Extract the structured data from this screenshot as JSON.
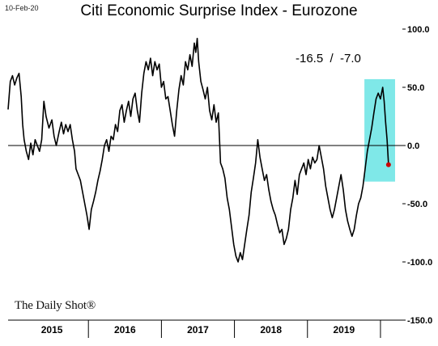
{
  "header": {
    "date": "10-Feb-20"
  },
  "annotation": "-16.5  /  -7.0",
  "source_logo": "The Daily Shot®",
  "colors": {
    "line": "#000000",
    "highlight": "#7fe8e8",
    "last_point": "#cc0000"
  },
  "chart_data": {
    "type": "line",
    "title": "Citi Economic Surprise Index - Eurozone",
    "ylim": [
      -150,
      100
    ],
    "yticks": [
      100,
      50,
      0,
      -50,
      -100,
      -150
    ],
    "ytick_labels": [
      "100.0",
      "50.0",
      "0.0",
      "-50.0",
      "-100.0",
      "-150.0"
    ],
    "xlim": [
      2014.9,
      2020.3
    ],
    "x_tick_labels": [
      "2015",
      "2016",
      "2017",
      "2018",
      "2019"
    ],
    "x_tick_positions": [
      2015.5,
      2016.5,
      2017.5,
      2018.5,
      2019.5
    ],
    "x_boundaries": [
      2016.0,
      2017.0,
      2018.0,
      2019.0,
      2020.0
    ],
    "highlight_range": {
      "x": [
        2019.78,
        2020.2
      ],
      "y": [
        -31,
        57
      ]
    },
    "last_value": {
      "x": 2020.11,
      "y": -16.5
    },
    "series": [
      {
        "values": [
          [
            2014.9,
            31
          ],
          [
            2014.93,
            55
          ],
          [
            2014.96,
            60
          ],
          [
            2014.99,
            52
          ],
          [
            2015.02,
            58
          ],
          [
            2015.05,
            62
          ],
          [
            2015.08,
            42
          ],
          [
            2015.1,
            18
          ],
          [
            2015.12,
            5
          ],
          [
            2015.15,
            -5
          ],
          [
            2015.18,
            -12
          ],
          [
            2015.21,
            2
          ],
          [
            2015.24,
            -8
          ],
          [
            2015.27,
            5
          ],
          [
            2015.3,
            0
          ],
          [
            2015.33,
            -5
          ],
          [
            2015.36,
            5
          ],
          [
            2015.39,
            38
          ],
          [
            2015.42,
            25
          ],
          [
            2015.46,
            15
          ],
          [
            2015.5,
            22
          ],
          [
            2015.53,
            8
          ],
          [
            2015.56,
            0
          ],
          [
            2015.6,
            12
          ],
          [
            2015.63,
            20
          ],
          [
            2015.66,
            10
          ],
          [
            2015.69,
            18
          ],
          [
            2015.72,
            12
          ],
          [
            2015.75,
            18
          ],
          [
            2015.78,
            5
          ],
          [
            2015.81,
            -5
          ],
          [
            2015.83,
            -20
          ],
          [
            2015.86,
            -25
          ],
          [
            2015.89,
            -30
          ],
          [
            2015.92,
            -40
          ],
          [
            2015.95,
            -50
          ],
          [
            2015.98,
            -60
          ],
          [
            2016.01,
            -72
          ],
          [
            2016.04,
            -55
          ],
          [
            2016.07,
            -48
          ],
          [
            2016.1,
            -40
          ],
          [
            2016.13,
            -30
          ],
          [
            2016.16,
            -22
          ],
          [
            2016.19,
            -12
          ],
          [
            2016.22,
            0
          ],
          [
            2016.25,
            5
          ],
          [
            2016.28,
            -5
          ],
          [
            2016.31,
            8
          ],
          [
            2016.34,
            5
          ],
          [
            2016.37,
            18
          ],
          [
            2016.4,
            12
          ],
          [
            2016.43,
            30
          ],
          [
            2016.46,
            35
          ],
          [
            2016.49,
            20
          ],
          [
            2016.52,
            30
          ],
          [
            2016.55,
            38
          ],
          [
            2016.58,
            25
          ],
          [
            2016.61,
            40
          ],
          [
            2016.64,
            45
          ],
          [
            2016.67,
            30
          ],
          [
            2016.7,
            20
          ],
          [
            2016.73,
            45
          ],
          [
            2016.76,
            62
          ],
          [
            2016.79,
            72
          ],
          [
            2016.82,
            65
          ],
          [
            2016.85,
            75
          ],
          [
            2016.88,
            60
          ],
          [
            2016.91,
            72
          ],
          [
            2016.94,
            65
          ],
          [
            2016.97,
            70
          ],
          [
            2017.0,
            50
          ],
          [
            2017.03,
            55
          ],
          [
            2017.06,
            40
          ],
          [
            2017.09,
            42
          ],
          [
            2017.12,
            30
          ],
          [
            2017.15,
            18
          ],
          [
            2017.18,
            8
          ],
          [
            2017.21,
            30
          ],
          [
            2017.24,
            48
          ],
          [
            2017.27,
            60
          ],
          [
            2017.3,
            52
          ],
          [
            2017.33,
            72
          ],
          [
            2017.36,
            65
          ],
          [
            2017.39,
            78
          ],
          [
            2017.42,
            68
          ],
          [
            2017.45,
            88
          ],
          [
            2017.47,
            80
          ],
          [
            2017.49,
            92
          ],
          [
            2017.51,
            72
          ],
          [
            2017.54,
            55
          ],
          [
            2017.57,
            48
          ],
          [
            2017.6,
            40
          ],
          [
            2017.63,
            50
          ],
          [
            2017.66,
            30
          ],
          [
            2017.69,
            22
          ],
          [
            2017.72,
            35
          ],
          [
            2017.75,
            20
          ],
          [
            2017.78,
            28
          ],
          [
            2017.81,
            -15
          ],
          [
            2017.84,
            -20
          ],
          [
            2017.87,
            -28
          ],
          [
            2017.9,
            -45
          ],
          [
            2017.93,
            -55
          ],
          [
            2017.96,
            -70
          ],
          [
            2017.99,
            -85
          ],
          [
            2018.02,
            -95
          ],
          [
            2018.05,
            -100
          ],
          [
            2018.08,
            -92
          ],
          [
            2018.11,
            -98
          ],
          [
            2018.14,
            -85
          ],
          [
            2018.17,
            -72
          ],
          [
            2018.2,
            -60
          ],
          [
            2018.23,
            -40
          ],
          [
            2018.26,
            -28
          ],
          [
            2018.29,
            -15
          ],
          [
            2018.32,
            5
          ],
          [
            2018.35,
            -10
          ],
          [
            2018.38,
            -20
          ],
          [
            2018.41,
            -30
          ],
          [
            2018.44,
            -25
          ],
          [
            2018.47,
            -38
          ],
          [
            2018.5,
            -48
          ],
          [
            2018.53,
            -55
          ],
          [
            2018.56,
            -60
          ],
          [
            2018.59,
            -68
          ],
          [
            2018.62,
            -75
          ],
          [
            2018.65,
            -72
          ],
          [
            2018.68,
            -85
          ],
          [
            2018.71,
            -80
          ],
          [
            2018.74,
            -72
          ],
          [
            2018.77,
            -55
          ],
          [
            2018.8,
            -45
          ],
          [
            2018.83,
            -30
          ],
          [
            2018.86,
            -42
          ],
          [
            2018.89,
            -25
          ],
          [
            2018.92,
            -20
          ],
          [
            2018.95,
            -15
          ],
          [
            2018.98,
            -25
          ],
          [
            2019.01,
            -12
          ],
          [
            2019.04,
            -20
          ],
          [
            2019.07,
            -10
          ],
          [
            2019.1,
            -15
          ],
          [
            2019.13,
            -12
          ],
          [
            2019.16,
            0
          ],
          [
            2019.19,
            -10
          ],
          [
            2019.22,
            -20
          ],
          [
            2019.25,
            -35
          ],
          [
            2019.28,
            -45
          ],
          [
            2019.31,
            -55
          ],
          [
            2019.34,
            -62
          ],
          [
            2019.37,
            -55
          ],
          [
            2019.4,
            -45
          ],
          [
            2019.43,
            -35
          ],
          [
            2019.46,
            -25
          ],
          [
            2019.49,
            -38
          ],
          [
            2019.52,
            -55
          ],
          [
            2019.55,
            -65
          ],
          [
            2019.58,
            -72
          ],
          [
            2019.61,
            -78
          ],
          [
            2019.64,
            -72
          ],
          [
            2019.67,
            -60
          ],
          [
            2019.7,
            -50
          ],
          [
            2019.73,
            -45
          ],
          [
            2019.76,
            -35
          ],
          [
            2019.79,
            -20
          ],
          [
            2019.82,
            -5
          ],
          [
            2019.85,
            5
          ],
          [
            2019.88,
            15
          ],
          [
            2019.91,
            28
          ],
          [
            2019.94,
            40
          ],
          [
            2019.97,
            45
          ],
          [
            2020.0,
            40
          ],
          [
            2020.03,
            50
          ],
          [
            2020.05,
            38
          ],
          [
            2020.07,
            20
          ],
          [
            2020.09,
            5
          ],
          [
            2020.11,
            -16.5
          ]
        ]
      }
    ]
  }
}
